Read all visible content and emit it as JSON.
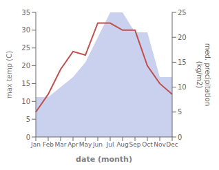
{
  "chart_data": {
    "type": "line",
    "xlabel": "date (month)",
    "ylabel": "max temp (C)",
    "y2label": "med. precipitation\n(kg/m2)",
    "categories": [
      "Jan",
      "Feb",
      "Mar",
      "Apr",
      "May",
      "Jun",
      "Jul",
      "Aug",
      "Sep",
      "Oct",
      "Nov",
      "Dec"
    ],
    "series": [
      {
        "type": "area",
        "axis": "y2",
        "color": "#bfc9ec",
        "values": [
          8,
          8,
          10,
          12,
          15,
          20,
          25,
          25,
          21,
          21,
          12,
          12
        ]
      },
      {
        "type": "line",
        "color": "#c0504d",
        "values": [
          7,
          12,
          19,
          24,
          23,
          32,
          32,
          30,
          30,
          20,
          15,
          12
        ]
      }
    ],
    "ylim": [
      0,
      35
    ],
    "yticks": [
      0,
      5,
      10,
      15,
      20,
      25,
      30,
      35
    ],
    "y2lim": [
      0,
      25
    ],
    "y2ticks": [
      0,
      5,
      10,
      15,
      20,
      25
    ],
    "grid": false
  }
}
